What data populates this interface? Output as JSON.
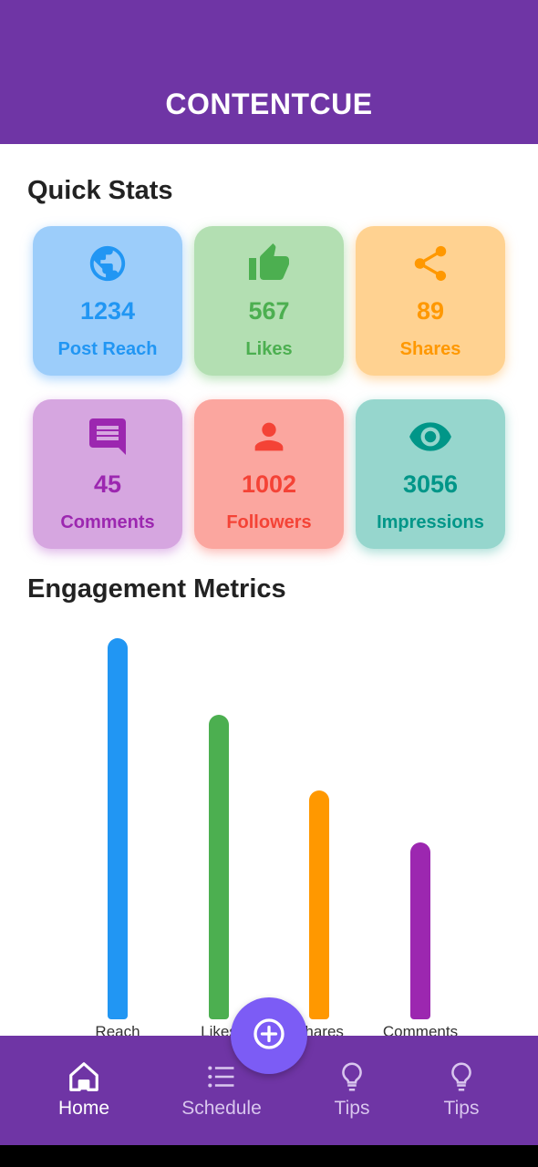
{
  "app": {
    "title": "CONTENTCUE",
    "brand_color": "#6f35a5"
  },
  "quick_stats": {
    "title": "Quick Stats",
    "cards": [
      {
        "value": "1234",
        "label": "Post Reach",
        "icon": "globe-icon",
        "color": "#2196f3"
      },
      {
        "value": "567",
        "label": "Likes",
        "icon": "thumbs-up-icon",
        "color": "#4caf50"
      },
      {
        "value": "89",
        "label": "Shares",
        "icon": "share-icon",
        "color": "#ff9800"
      },
      {
        "value": "45",
        "label": "Comments",
        "icon": "comment-icon",
        "color": "#9c27b0"
      },
      {
        "value": "1002",
        "label": "Followers",
        "icon": "person-icon",
        "color": "#f44336"
      },
      {
        "value": "3056",
        "label": "Impressions",
        "icon": "eye-icon",
        "color": "#009688"
      }
    ]
  },
  "engagement": {
    "title": "Engagement Metrics"
  },
  "chart_data": {
    "type": "bar",
    "categories": [
      "Reach",
      "Likes",
      "Shares",
      "Comments"
    ],
    "values": [
      100,
      80,
      60,
      46.5
    ],
    "colors": [
      "#2196f3",
      "#4caf50",
      "#ff9800",
      "#9c27b0"
    ],
    "ylim": [
      0,
      100
    ],
    "grid": false,
    "title": "",
    "xlabel": "",
    "ylabel": ""
  },
  "fab": {
    "icon": "add-circle-icon"
  },
  "bottom_nav": {
    "items": [
      {
        "label": "Home",
        "icon": "home-icon",
        "active": true
      },
      {
        "label": "Schedule",
        "icon": "list-icon",
        "active": false
      },
      {
        "label": "Tips",
        "icon": "lightbulb-icon",
        "active": false
      },
      {
        "label": "Tips",
        "icon": "lightbulb-icon",
        "active": false
      }
    ]
  }
}
